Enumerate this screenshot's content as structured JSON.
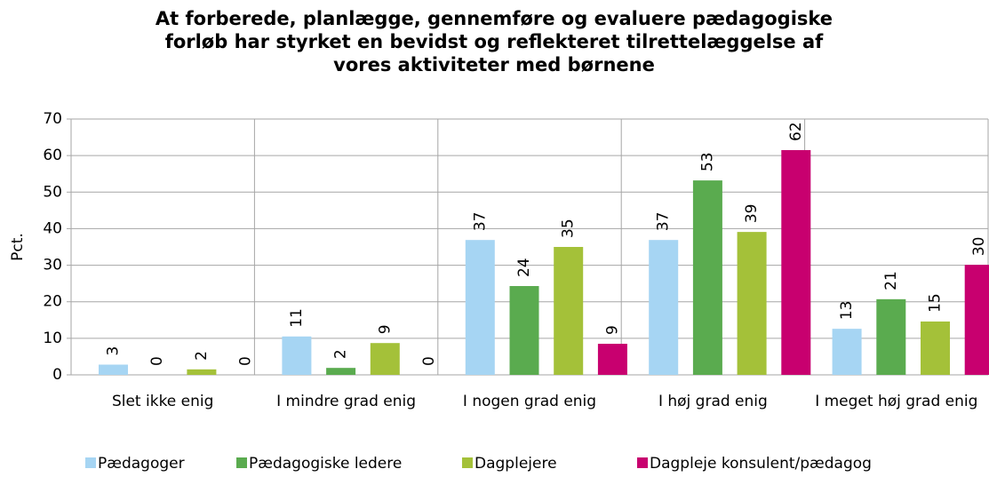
{
  "chart_data": {
    "type": "bar",
    "title": "At forberede, planlægge, gennemføre og evaluere pædagogiske forløb har styrket en bevidst og reflekteret tilrettelæggelse af vores aktiviteter med børnene",
    "y_label": "Pct.",
    "categories": [
      "Slet ikke enig",
      "I mindre grad enig",
      "I nogen grad enig",
      "I høj grad enig",
      "I meget høj grad enig"
    ],
    "series": [
      {
        "name": "Pædagoger",
        "color": "#a6d5f3",
        "values": [
          2.8,
          10.5,
          36.9,
          36.9,
          12.6
        ],
        "value_labels": [
          "3",
          "11",
          "37",
          "37",
          "13"
        ]
      },
      {
        "name": "Pædagogiske ledere",
        "color": "#5aab4f",
        "values": [
          0,
          1.9,
          24.3,
          53.2,
          20.7
        ],
        "value_labels": [
          "0",
          "2",
          "24",
          "53",
          "21"
        ]
      },
      {
        "name": "Dagplejere",
        "color": "#a4c139",
        "values": [
          1.5,
          8.7,
          35.0,
          39.1,
          14.6
        ],
        "value_labels": [
          "2",
          "9",
          "35",
          "39",
          "15"
        ]
      },
      {
        "name": "Dagpleje konsulent/pædagog",
        "color": "#c8006f",
        "values": [
          0,
          0,
          8.5,
          61.5,
          30.1
        ],
        "value_labels": [
          "0",
          "0",
          "9",
          "62",
          "30"
        ]
      }
    ],
    "ylim": [
      0,
      70
    ],
    "yticks": [
      0,
      10,
      20,
      30,
      40,
      50,
      60,
      70
    ],
    "grid": true
  }
}
